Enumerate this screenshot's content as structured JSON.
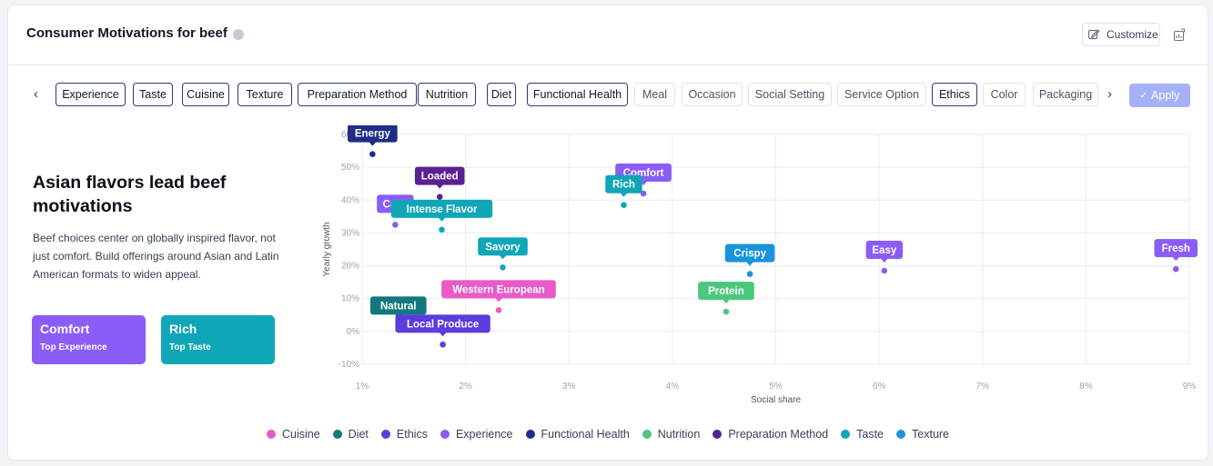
{
  "header": {
    "title": "Consumer Motivations for beef",
    "customize_label": "Customize"
  },
  "chips": [
    {
      "label": "Experience",
      "selected": true
    },
    {
      "label": "Taste",
      "selected": true
    },
    {
      "label": "Cuisine",
      "selected": true
    },
    {
      "label": "Texture",
      "selected": true
    },
    {
      "label": "Preparation Method",
      "selected": true
    },
    {
      "label": "Nutrition",
      "selected": true
    },
    {
      "label": "Diet",
      "selected": true
    },
    {
      "label": "Functional Health",
      "selected": true
    },
    {
      "label": "Meal",
      "selected": false
    },
    {
      "label": "Occasion",
      "selected": false
    },
    {
      "label": "Social Setting",
      "selected": false
    },
    {
      "label": "Service Option",
      "selected": false
    },
    {
      "label": "Ethics",
      "selected": true
    },
    {
      "label": "Color",
      "selected": false
    },
    {
      "label": "Packaging",
      "selected": false
    }
  ],
  "apply_label": "Apply",
  "insight": {
    "headline": "Asian flavors lead beef motivations",
    "description": "Beef choices center on globally inspired flavor, not just comfort. Build offerings around Asian and Latin American formats to widen appeal."
  },
  "kpis": [
    {
      "value": "Comfort",
      "label": "Top Experience",
      "color": "#8b5cf6"
    },
    {
      "value": "Rich",
      "label": "Top Taste",
      "color": "#0fa6b8"
    }
  ],
  "colors": {
    "Cuisine": "#e85bc8",
    "Diet": "#13777e",
    "Ethics": "#5b3cdd",
    "Experience": "#8b5cf6",
    "Functional Health": "#1f2d86",
    "Nutrition": "#4cc77e",
    "Preparation Method": "#5b2192",
    "Taste": "#0fa6b8",
    "Texture": "#1a94dc"
  },
  "chart_data": {
    "type": "scatter",
    "xlabel": "Social share",
    "ylabel": "Yearly growth",
    "xlim": [
      1,
      9
    ],
    "ylim": [
      -10,
      60
    ],
    "xticks": [
      "1%",
      "2%",
      "3%",
      "4%",
      "5%",
      "6%",
      "7%",
      "8%",
      "9%"
    ],
    "yticks": [
      "60%",
      "50%",
      "40%",
      "30%",
      "20%",
      "10%",
      "0%",
      "-10%"
    ],
    "grid": true,
    "legend_position": "bottom",
    "series": [
      {
        "name": "Cuisine",
        "points": [
          {
            "label": "Western European",
            "x": 2.32,
            "y": 6.5
          }
        ]
      },
      {
        "name": "Diet",
        "points": [
          {
            "label": "Natural",
            "x": 1.35,
            "y": 1.5
          }
        ]
      },
      {
        "name": "Ethics",
        "points": [
          {
            "label": "Local Produce",
            "x": 1.78,
            "y": -4
          }
        ]
      },
      {
        "name": "Experience",
        "points": [
          {
            "label": "Cozy",
            "x": 1.32,
            "y": 32.5
          },
          {
            "label": "Comfort",
            "x": 3.72,
            "y": 42
          },
          {
            "label": "Easy",
            "x": 6.05,
            "y": 18.5
          },
          {
            "label": "Fresh",
            "x": 8.87,
            "y": 19
          }
        ]
      },
      {
        "name": "Functional Health",
        "points": [
          {
            "label": "Energy",
            "x": 1.1,
            "y": 54
          }
        ]
      },
      {
        "name": "Nutrition",
        "points": [
          {
            "label": "Protein",
            "x": 4.52,
            "y": 6
          }
        ]
      },
      {
        "name": "Preparation Method",
        "points": [
          {
            "label": "Loaded",
            "x": 1.75,
            "y": 41
          }
        ]
      },
      {
        "name": "Taste",
        "points": [
          {
            "label": "Intense Flavor",
            "x": 1.77,
            "y": 31
          },
          {
            "label": "Savory",
            "x": 2.36,
            "y": 19.5
          },
          {
            "label": "Rich",
            "x": 3.53,
            "y": 38.5
          }
        ]
      },
      {
        "name": "Texture",
        "points": [
          {
            "label": "Crispy",
            "x": 4.75,
            "y": 17.5
          }
        ]
      }
    ]
  }
}
